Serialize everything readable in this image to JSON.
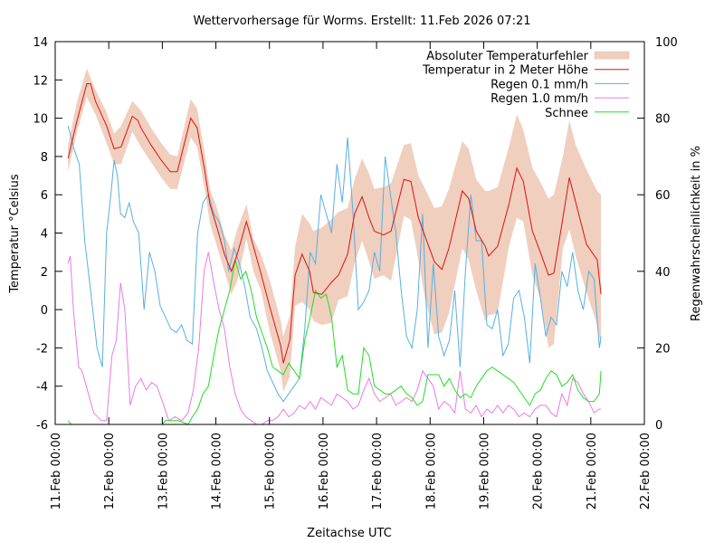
{
  "chart_data": {
    "type": "line",
    "title": "Wettervorhersage für Worms. Erstellt: 11.Feb 2026 07:21",
    "xlabel": "Zeitachse UTC",
    "ylabel": "Temperatur °Celsius",
    "y2label": "Regenwahrscheinlichkeit in %",
    "x_unit": "days since 11.Feb 00:00",
    "xlim": [
      0,
      11
    ],
    "ylim": [
      -6,
      14
    ],
    "y2lim": [
      0,
      100
    ],
    "grid": false,
    "legend_position": "top-right",
    "x_ticks": [
      {
        "value": 0,
        "label": "11.Feb 00:00"
      },
      {
        "value": 1,
        "label": "12.Feb 00:00"
      },
      {
        "value": 2,
        "label": "13.Feb 00:00"
      },
      {
        "value": 3,
        "label": "14.Feb 00:00"
      },
      {
        "value": 4,
        "label": "15.Feb 00:00"
      },
      {
        "value": 5,
        "label": "16.Feb 00:00"
      },
      {
        "value": 6,
        "label": "17.Feb 00:00"
      },
      {
        "value": 7,
        "label": "18.Feb 00:00"
      },
      {
        "value": 8,
        "label": "19.Feb 00:00"
      },
      {
        "value": 9,
        "label": "20.Feb 00:00"
      },
      {
        "value": 10,
        "label": "21.Feb 00:00"
      },
      {
        "value": 11,
        "label": "22.Feb 00:00"
      }
    ],
    "y_ticks": [
      {
        "value": 14,
        "label": "14"
      },
      {
        "value": 12,
        "label": "12"
      },
      {
        "value": 10,
        "label": "10"
      },
      {
        "value": 8,
        "label": "8"
      },
      {
        "value": 6,
        "label": "6"
      },
      {
        "value": 4,
        "label": "4"
      },
      {
        "value": 2,
        "label": "2"
      },
      {
        "value": 0,
        "label": "0"
      },
      {
        "value": -2,
        "label": "-2"
      },
      {
        "value": -4,
        "label": "-4"
      },
      {
        "value": -6,
        "label": "-6"
      }
    ],
    "y2_ticks": [
      {
        "value": 100,
        "label": "100"
      },
      {
        "value": 80,
        "label": "80"
      },
      {
        "value": 60,
        "label": "60"
      },
      {
        "value": 40,
        "label": "40"
      },
      {
        "value": 20,
        "label": "20"
      },
      {
        "value": 0,
        "label": "0"
      }
    ],
    "legend": [
      {
        "key": "error",
        "label": "Absoluter Temperaturfehler",
        "color": "#f0cfbf",
        "kind": "band"
      },
      {
        "key": "temp",
        "label": "Temperatur in 2 Meter Höhe",
        "color": "#e01010",
        "kind": "line"
      },
      {
        "key": "rain01",
        "label": "Regen 0.1 mm/h",
        "color": "#56b0e0",
        "kind": "line"
      },
      {
        "key": "rain10",
        "label": "Regen 1.0 mm/h",
        "color": "#e87ae8",
        "kind": "line"
      },
      {
        "key": "snow",
        "label": "Schnee",
        "color": "#22dd22",
        "kind": "line"
      }
    ],
    "series": [
      {
        "name": "Absoluter Temperaturfehler",
        "axis": "y",
        "x": [
          0.24,
          0.4,
          0.59,
          0.75,
          0.96,
          1.1,
          1.23,
          1.44,
          1.6,
          1.79,
          1.98,
          2.15,
          2.28,
          2.53,
          2.65,
          2.79,
          2.89,
          3.02,
          3.16,
          3.29,
          3.4,
          3.57,
          3.7,
          3.84,
          4.01,
          4.21,
          4.26,
          4.38,
          4.48,
          4.61,
          4.75,
          4.82,
          4.98,
          5.15,
          5.29,
          5.46,
          5.59,
          5.73,
          5.86,
          5.96,
          6.13,
          6.27,
          6.51,
          6.64,
          6.78,
          6.91,
          7.08,
          7.22,
          7.35,
          7.6,
          7.72,
          7.86,
          8.03,
          8.09,
          8.26,
          8.47,
          8.62,
          8.74,
          8.91,
          9.07,
          9.21,
          9.31,
          9.48,
          9.6,
          9.72,
          9.92,
          10.12,
          10.19
        ],
        "upper": [
          8.6,
          10.8,
          12.6,
          11.5,
          10.3,
          9.2,
          9.6,
          10.9,
          10.4,
          9.5,
          8.7,
          8.1,
          8.0,
          11.0,
          10.5,
          8.2,
          6.3,
          5.3,
          3.9,
          3.1,
          4.2,
          5.5,
          3.7,
          2.9,
          1.5,
          -0.6,
          -1.4,
          -0.3,
          3.3,
          5.0,
          4.5,
          4.1,
          4.3,
          4.7,
          5.1,
          5.3,
          6.8,
          7.9,
          7.1,
          6.3,
          6.4,
          6.6,
          8.6,
          8.7,
          7.0,
          6.3,
          5.3,
          5.4,
          6.3,
          8.8,
          8.4,
          6.8,
          6.2,
          6.2,
          6.4,
          8.5,
          10.2,
          9.4,
          7.4,
          6.6,
          5.8,
          6.0,
          8.0,
          9.9,
          8.6,
          7.3,
          6.2,
          6.0
        ],
        "lower": [
          7.2,
          9.2,
          11.1,
          10.2,
          8.7,
          7.6,
          7.6,
          9.3,
          8.5,
          7.7,
          6.9,
          6.3,
          6.3,
          9.0,
          8.5,
          6.3,
          4.5,
          3.3,
          2.0,
          0.8,
          1.5,
          3.7,
          2.0,
          1.0,
          -1.2,
          -3.2,
          -4.3,
          -3.5,
          0.2,
          0.4,
          0.0,
          -0.6,
          -0.8,
          -0.7,
          0.5,
          0.7,
          2.4,
          3.6,
          2.5,
          1.6,
          1.8,
          1.5,
          4.9,
          4.7,
          2.6,
          0.5,
          -1.3,
          -1.2,
          -0.2,
          3.2,
          2.6,
          1.0,
          -0.6,
          -0.3,
          -0.2,
          3.3,
          4.8,
          4.6,
          1.8,
          0.5,
          -2.0,
          -1.8,
          3.2,
          4.2,
          2.8,
          0.9,
          -0.8,
          -1.9
        ]
      },
      {
        "name": "Temperatur in 2 Meter Höhe",
        "axis": "y",
        "x": [
          0.24,
          0.4,
          0.59,
          0.66,
          0.75,
          0.96,
          1.1,
          1.23,
          1.44,
          1.54,
          1.6,
          1.79,
          1.98,
          2.15,
          2.28,
          2.53,
          2.65,
          2.79,
          2.89,
          3.02,
          3.16,
          3.29,
          3.4,
          3.57,
          3.7,
          3.84,
          4.01,
          4.21,
          4.26,
          4.38,
          4.48,
          4.61,
          4.75,
          4.82,
          4.98,
          5.15,
          5.29,
          5.46,
          5.59,
          5.73,
          5.86,
          5.96,
          6.13,
          6.27,
          6.51,
          6.64,
          6.78,
          6.91,
          7.08,
          7.22,
          7.35,
          7.6,
          7.72,
          7.86,
          8.03,
          8.09,
          8.26,
          8.47,
          8.62,
          8.74,
          8.91,
          9.07,
          9.21,
          9.31,
          9.48,
          9.6,
          9.72,
          9.92,
          10.12,
          10.19
        ],
        "values": [
          7.9,
          9.8,
          11.8,
          11.8,
          10.9,
          9.6,
          8.4,
          8.5,
          10.1,
          9.9,
          9.5,
          8.6,
          7.8,
          7.2,
          7.2,
          10.0,
          9.5,
          7.3,
          5.5,
          4.3,
          2.9,
          2.0,
          2.9,
          4.6,
          3.3,
          1.9,
          0.1,
          -1.9,
          -2.8,
          -1.6,
          1.8,
          2.9,
          2.0,
          0.9,
          0.8,
          1.4,
          1.8,
          2.9,
          5.0,
          5.9,
          4.8,
          4.1,
          3.9,
          4.1,
          6.8,
          6.7,
          4.8,
          3.8,
          2.5,
          2.1,
          3.2,
          6.2,
          5.8,
          4.1,
          3.3,
          2.8,
          3.3,
          5.5,
          7.4,
          6.7,
          4.1,
          2.9,
          1.8,
          1.9,
          4.8,
          6.9,
          5.6,
          3.4,
          2.6,
          0.8
        ]
      },
      {
        "name": "Regen 0.1 mm/h",
        "axis": "y2",
        "x": [
          0.24,
          0.35,
          0.45,
          0.55,
          0.66,
          0.78,
          0.88,
          0.96,
          1.04,
          1.1,
          1.16,
          1.22,
          1.3,
          1.38,
          1.46,
          1.56,
          1.66,
          1.76,
          1.86,
          1.96,
          2.06,
          2.16,
          2.26,
          2.36,
          2.46,
          2.56,
          2.66,
          2.76,
          2.86,
          2.96,
          3.06,
          3.16,
          3.24,
          3.34,
          3.44,
          3.54,
          3.64,
          3.76,
          3.86,
          3.96,
          4.06,
          4.16,
          4.26,
          4.36,
          4.46,
          4.56,
          4.66,
          4.76,
          4.86,
          4.96,
          5.06,
          5.16,
          5.26,
          5.36,
          5.46,
          5.56,
          5.66,
          5.76,
          5.86,
          5.96,
          6.06,
          6.16,
          6.26,
          6.36,
          6.46,
          6.56,
          6.66,
          6.76,
          6.86,
          6.96,
          7.06,
          7.16,
          7.26,
          7.36,
          7.46,
          7.56,
          7.66,
          7.76,
          7.86,
          7.96,
          8.06,
          8.16,
          8.26,
          8.36,
          8.46,
          8.56,
          8.66,
          8.76,
          8.86,
          8.96,
          9.06,
          9.16,
          9.26,
          9.36,
          9.46,
          9.56,
          9.66,
          9.76,
          9.86,
          9.96,
          10.06,
          10.16,
          10.19
        ],
        "values": [
          78,
          72,
          68,
          48,
          35,
          20,
          15,
          50,
          60,
          69,
          65,
          55,
          54,
          58,
          53,
          50,
          30,
          45,
          40,
          31,
          28,
          25,
          24,
          26,
          22,
          21,
          50,
          58,
          60,
          55,
          53,
          48,
          40,
          46,
          42,
          36,
          28,
          25,
          20,
          14,
          11,
          8,
          6,
          8,
          10,
          12,
          25,
          45,
          42,
          60,
          55,
          50,
          68,
          58,
          75,
          55,
          30,
          32,
          35,
          45,
          40,
          70,
          60,
          50,
          35,
          23,
          20,
          30,
          55,
          20,
          42,
          23,
          18,
          22,
          35,
          15,
          40,
          60,
          48,
          48,
          26,
          25,
          30,
          18,
          21,
          33,
          35,
          28,
          16,
          42,
          33,
          23,
          28,
          26,
          40,
          36,
          45,
          35,
          30,
          40,
          38,
          20,
          23
        ]
      },
      {
        "name": "Regen 1.0 mm/h",
        "axis": "y2",
        "x": [
          0.24,
          0.28,
          0.34,
          0.44,
          0.5,
          0.62,
          0.72,
          0.86,
          0.96,
          1.06,
          1.14,
          1.22,
          1.3,
          1.4,
          1.5,
          1.6,
          1.7,
          1.8,
          1.9,
          2.0,
          2.12,
          2.24,
          2.36,
          2.48,
          2.58,
          2.68,
          2.78,
          2.86,
          2.96,
          3.06,
          3.16,
          3.26,
          3.36,
          3.46,
          3.56,
          3.66,
          3.76,
          3.86,
          3.96,
          4.06,
          4.16,
          4.26,
          4.36,
          4.46,
          4.56,
          4.66,
          4.76,
          4.86,
          4.96,
          5.06,
          5.16,
          5.26,
          5.36,
          5.46,
          5.56,
          5.66,
          5.76,
          5.86,
          5.96,
          6.06,
          6.16,
          6.26,
          6.36,
          6.46,
          6.56,
          6.66,
          6.76,
          6.86,
          6.96,
          7.06,
          7.16,
          7.26,
          7.36,
          7.46,
          7.56,
          7.66,
          7.76,
          7.86,
          7.96,
          8.06,
          8.16,
          8.26,
          8.36,
          8.46,
          8.56,
          8.66,
          8.76,
          8.86,
          8.96,
          9.06,
          9.16,
          9.26,
          9.36,
          9.46,
          9.56,
          9.66,
          9.76,
          9.86,
          9.96,
          10.06,
          10.16,
          10.19
        ],
        "values": [
          42,
          44,
          30,
          15,
          14,
          8,
          3,
          1,
          1,
          18,
          22,
          37,
          30,
          5,
          10,
          12,
          9,
          11,
          10,
          6,
          1,
          2,
          1,
          3,
          9,
          20,
          40,
          45,
          37,
          30,
          25,
          15,
          8,
          4,
          2,
          1,
          0,
          0,
          1,
          1,
          2,
          4,
          2,
          3,
          5,
          4,
          6,
          4,
          7,
          6,
          5,
          8,
          7,
          6,
          4,
          5,
          9,
          12,
          8,
          6,
          7,
          8,
          5,
          6,
          7,
          6,
          9,
          14,
          12,
          10,
          4,
          6,
          5,
          3,
          14,
          4,
          3,
          5,
          2,
          4,
          3,
          5,
          3,
          5,
          4,
          2,
          3,
          2,
          4,
          5,
          5,
          3,
          2,
          8,
          5,
          12,
          11,
          8,
          6,
          3,
          4,
          4
        ]
      },
      {
        "name": "Schnee",
        "axis": "y2",
        "x": [
          0.24,
          0.3,
          2.0,
          2.06,
          2.16,
          2.3,
          2.48,
          2.56,
          2.66,
          2.76,
          2.86,
          2.96,
          3.06,
          3.16,
          3.26,
          3.36,
          3.46,
          3.56,
          3.66,
          3.76,
          3.86,
          3.96,
          4.06,
          4.16,
          4.26,
          4.36,
          4.46,
          4.56,
          4.66,
          4.76,
          4.86,
          4.96,
          5.06,
          5.16,
          5.26,
          5.36,
          5.46,
          5.56,
          5.66,
          5.76,
          5.86,
          5.96,
          6.06,
          6.16,
          6.26,
          6.36,
          6.46,
          6.56,
          6.66,
          6.76,
          6.86,
          6.96,
          7.06,
          7.16,
          7.26,
          7.36,
          7.46,
          7.56,
          7.66,
          7.76,
          7.86,
          7.96,
          8.06,
          8.16,
          8.26,
          8.36,
          8.46,
          8.56,
          8.66,
          8.76,
          8.86,
          8.96,
          9.06,
          9.16,
          9.26,
          9.36,
          9.46,
          9.56,
          9.66,
          9.76,
          9.86,
          9.96,
          10.06,
          10.16,
          10.19
        ],
        "values": [
          1,
          0,
          0,
          1,
          1,
          1,
          0,
          2,
          4,
          8,
          10,
          18,
          25,
          30,
          35,
          43,
          38,
          40,
          35,
          28,
          24,
          20,
          15,
          14,
          13,
          16,
          14,
          12,
          22,
          28,
          35,
          33,
          34,
          28,
          15,
          18,
          9,
          8,
          8,
          20,
          18,
          10,
          9,
          8,
          8,
          9,
          10,
          8,
          7,
          5,
          6,
          13,
          13,
          13,
          10,
          12,
          9,
          7,
          8,
          7,
          10,
          12,
          14,
          15,
          14,
          13,
          12,
          11,
          9,
          7,
          5,
          8,
          9,
          12,
          14,
          13,
          10,
          11,
          13,
          9,
          7,
          6,
          6,
          8,
          14
        ]
      }
    ]
  }
}
